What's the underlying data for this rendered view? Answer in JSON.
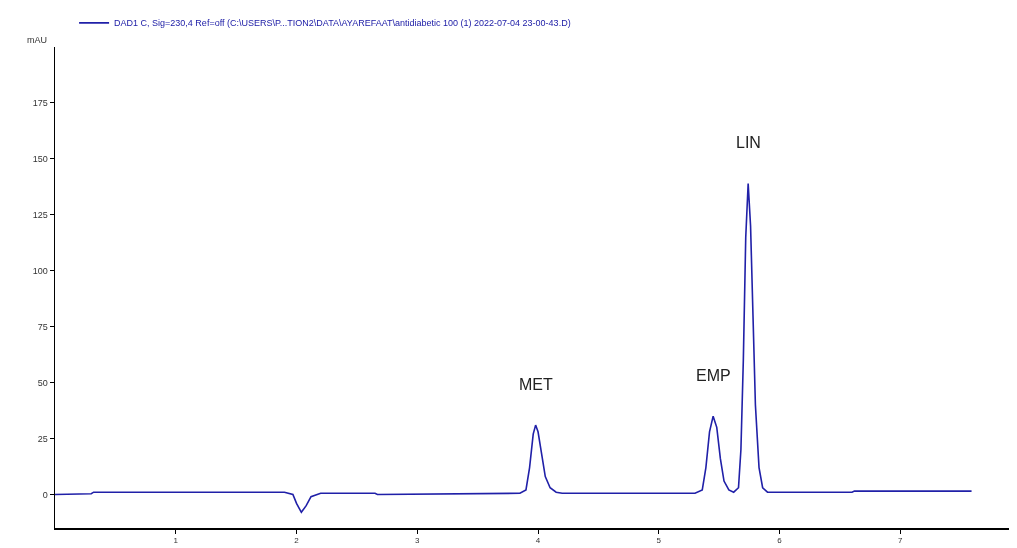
{
  "chart_data": {
    "type": "line",
    "ylabel": "mAU",
    "xlim": [
      0,
      7.9
    ],
    "xticks": [
      1,
      2,
      3,
      4,
      5,
      6,
      7
    ],
    "ylim": [
      -15,
      200
    ],
    "yticks": [
      0,
      25,
      50,
      75,
      100,
      125,
      150,
      175
    ],
    "grid": false,
    "legend": "top left",
    "marker": "none",
    "line_style": "solid",
    "annotations": [
      {
        "text": "MET",
        "x": 3.98,
        "y": 31
      },
      {
        "text": "EMP",
        "x": 5.45,
        "y": 35
      },
      {
        "text": "LIN",
        "x": 5.74,
        "y": 139
      }
    ],
    "series": [
      {
        "name": "DAD1 C, Sig=230,4 Ref=off (C:\\USERS\\P...TION2\\DATA\\AYAREFAAT\\antidiabetic 100 (1) 2022-07-04 23-00-43.D)",
        "color": "#2020a8",
        "x": [
          0,
          0.3,
          0.32,
          1.9,
          1.97,
          2.0,
          2.04,
          2.08,
          2.12,
          2.2,
          2.65,
          2.67,
          3.85,
          3.9,
          3.93,
          3.96,
          3.98,
          4.0,
          4.03,
          4.06,
          4.1,
          4.15,
          4.2,
          5.3,
          5.36,
          5.39,
          5.42,
          5.45,
          5.48,
          5.51,
          5.54,
          5.58,
          5.62,
          5.66,
          5.68,
          5.7,
          5.72,
          5.74,
          5.76,
          5.78,
          5.8,
          5.83,
          5.86,
          5.9,
          6.6,
          6.62,
          7.59
        ],
        "values": [
          0,
          0.3,
          1,
          1,
          0,
          -4,
          -8,
          -5,
          -1,
          0.5,
          0.5,
          0,
          0.5,
          2,
          12,
          27,
          31,
          28,
          18,
          8,
          3,
          1,
          0.5,
          0.5,
          2,
          12,
          28,
          35,
          30,
          16,
          6,
          2,
          1,
          3,
          20,
          60,
          115,
          139,
          120,
          80,
          40,
          12,
          3,
          1,
          1,
          1.5,
          1.5
        ]
      }
    ]
  }
}
